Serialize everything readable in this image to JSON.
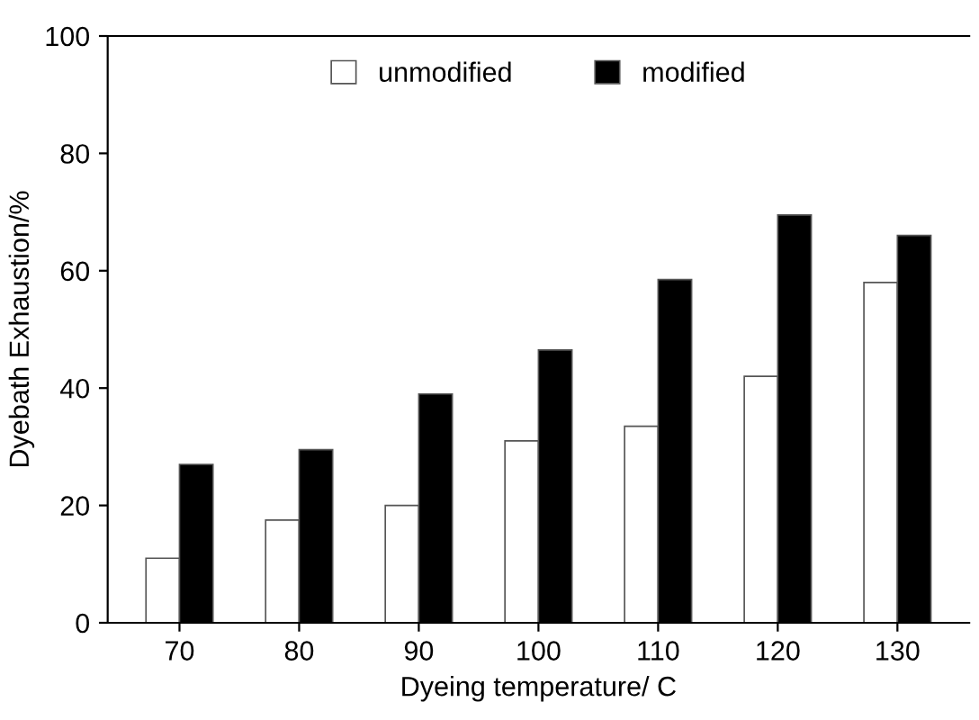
{
  "chart_data": {
    "type": "bar",
    "xlabel": "Dyeing temperature/ C",
    "ylabel": "Dyebath Exhaustion/%",
    "categories": [
      "70",
      "80",
      "90",
      "100",
      "110",
      "120",
      "130"
    ],
    "series": [
      {
        "name": "unmodified",
        "color": "#ffffff",
        "values": [
          11,
          17.5,
          20,
          31,
          33.5,
          42,
          58
        ]
      },
      {
        "name": "modified",
        "color": "#000000",
        "values": [
          27,
          29.5,
          39,
          46.5,
          58.5,
          69.5,
          66
        ]
      }
    ],
    "ylim": [
      0,
      100
    ],
    "yticks": [
      0,
      20,
      40,
      60,
      80,
      100
    ],
    "legend": "top",
    "grid": false
  }
}
